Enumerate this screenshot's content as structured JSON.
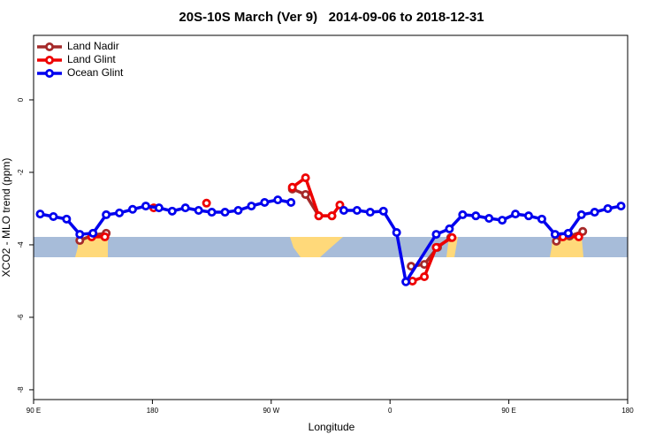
{
  "chart_data": {
    "type": "line",
    "title": "20S-10S March (Ver 9)   2014-09-06 to 2018-12-31",
    "xlabel": "Longitude",
    "ylabel": "XCO2 - MLO trend (ppm)",
    "xlim": [
      90,
      540
    ],
    "xticks": [
      {
        "value": 90,
        "label": "90 E"
      },
      {
        "value": 180,
        "label": "180"
      },
      {
        "value": 270,
        "label": "90 W"
      },
      {
        "value": 360,
        "label": "0"
      },
      {
        "value": 450,
        "label": "90 E"
      },
      {
        "value": 540,
        "label": "180"
      }
    ],
    "ylim": [
      -8.27,
      1.78
    ],
    "yticks": [
      0,
      -2,
      -4,
      -6,
      -8
    ],
    "legend": "top-left",
    "series": [
      {
        "name": "Land Nadir",
        "color": "#a52a2a",
        "x": [
          125,
          135,
          145,
          250,
          286,
          296,
          306,
          316,
          350,
          376,
          386,
          396,
          406,
          450,
          486,
          496,
          506
        ],
        "values": [
          -3.88,
          -3.73,
          -3.68,
          null,
          -2.46,
          -2.61,
          -3.2,
          -3.2,
          null,
          -4.59,
          -4.54,
          -4.07,
          -3.8,
          null,
          -3.9,
          -3.76,
          -3.63
        ]
      },
      {
        "name": "Land Glint",
        "color": "#ee0000",
        "x": [
          134,
          144,
          160,
          181,
          200,
          221,
          250,
          286,
          296,
          306,
          316,
          322,
          350,
          377,
          386,
          395,
          407,
          450,
          491,
          503
        ],
        "values": [
          -3.78,
          -3.78,
          null,
          -2.98,
          null,
          -2.85,
          null,
          -2.41,
          -2.15,
          -3.2,
          -3.2,
          -2.9,
          null,
          -5.0,
          -4.88,
          -4.07,
          -3.8,
          null,
          -3.78,
          -3.78
        ]
      },
      {
        "name": "Ocean Glint",
        "color": "#0000ee",
        "x": [
          95,
          105,
          115,
          125,
          135,
          145,
          155,
          165,
          175,
          185,
          195,
          205,
          215,
          225,
          235,
          245,
          255,
          265,
          275,
          285,
          305,
          325,
          335,
          345,
          355,
          365,
          372,
          395,
          405,
          415,
          425,
          435,
          445,
          455,
          465,
          475,
          485,
          495,
          505,
          515,
          525,
          535
        ],
        "values": [
          -3.15,
          -3.22,
          -3.29,
          -3.71,
          -3.68,
          -3.17,
          -3.12,
          -3.02,
          -2.93,
          -2.98,
          -3.07,
          -2.98,
          -3.05,
          -3.1,
          -3.1,
          -3.05,
          -2.93,
          -2.83,
          -2.76,
          -2.83,
          null,
          -3.05,
          -3.05,
          -3.1,
          -3.07,
          -3.66,
          -5.02,
          -3.71,
          -3.56,
          -3.17,
          -3.2,
          -3.27,
          -3.32,
          -3.15,
          -3.2,
          -3.29,
          -3.71,
          -3.68,
          -3.17,
          -3.1,
          -3.0,
          -2.93
        ]
      }
    ]
  }
}
